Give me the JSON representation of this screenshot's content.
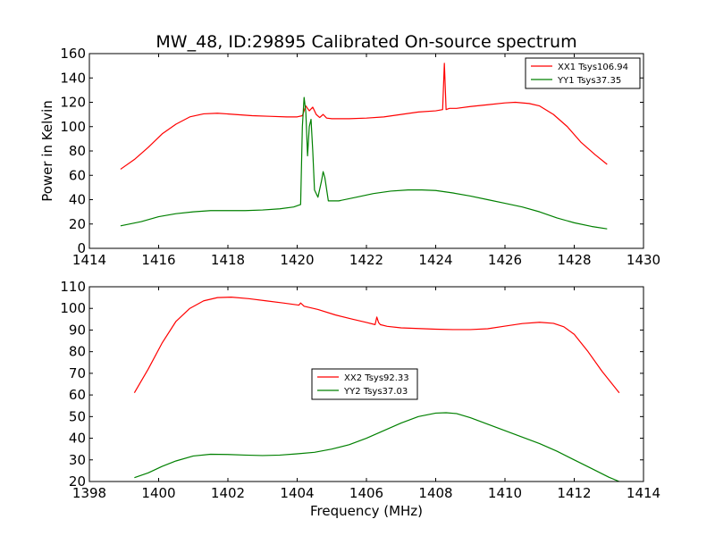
{
  "figure": {
    "title": "MW_48, ID:29895 Calibrated On-source spectrum",
    "ylabel": "Power in Kelvin",
    "xlabel": "Frequency (MHz)"
  },
  "chart_data": [
    {
      "type": "line",
      "title": "MW_48, ID:29895 Calibrated On-source spectrum",
      "xlabel": "",
      "ylabel": "Power in Kelvin",
      "xlim": [
        1414,
        1430
      ],
      "ylim": [
        0,
        160
      ],
      "xticks": [
        1414,
        1416,
        1418,
        1420,
        1422,
        1424,
        1426,
        1428,
        1430
      ],
      "yticks": [
        0,
        20,
        40,
        60,
        80,
        100,
        120,
        140,
        160
      ],
      "grid": false,
      "legend_position": "top-right",
      "series": [
        {
          "name": "XX1 Tsys106.94",
          "color": "#ff0000",
          "x": [
            1414.9,
            1415.3,
            1415.7,
            1416.1,
            1416.5,
            1416.9,
            1417.3,
            1417.7,
            1418.2,
            1418.7,
            1419.2,
            1419.7,
            1420.0,
            1420.15,
            1420.25,
            1420.35,
            1420.45,
            1420.55,
            1420.65,
            1420.75,
            1420.85,
            1421.0,
            1421.5,
            1422.0,
            1422.5,
            1423.0,
            1423.5,
            1424.0,
            1424.2,
            1424.25,
            1424.3,
            1424.35,
            1424.4,
            1424.6,
            1425.0,
            1425.5,
            1426.0,
            1426.3,
            1426.7,
            1427.0,
            1427.4,
            1427.8,
            1428.2,
            1428.6,
            1428.95
          ],
          "y": [
            65,
            73,
            83,
            94,
            102,
            108,
            110.5,
            111,
            110,
            109,
            108.5,
            108,
            108,
            109,
            117,
            113,
            116,
            110,
            107.5,
            110,
            107,
            106.5,
            106.5,
            107,
            108,
            110,
            112,
            113,
            114,
            152,
            114,
            114.5,
            115,
            115,
            116.5,
            118,
            119.5,
            120,
            119,
            117,
            110,
            100,
            87,
            77,
            69
          ]
        },
        {
          "name": "YY1 Tsys37.35",
          "color": "#008000",
          "x": [
            1414.9,
            1415.5,
            1416.0,
            1416.5,
            1417.0,
            1417.5,
            1418.0,
            1418.5,
            1419.0,
            1419.5,
            1419.9,
            1420.1,
            1420.15,
            1420.2,
            1420.25,
            1420.3,
            1420.35,
            1420.4,
            1420.45,
            1420.5,
            1420.6,
            1420.7,
            1420.75,
            1420.8,
            1420.9,
            1421.2,
            1421.7,
            1422.2,
            1422.7,
            1423.2,
            1423.6,
            1424.0,
            1424.5,
            1425.0,
            1425.5,
            1426.0,
            1426.5,
            1427.0,
            1427.5,
            1428.0,
            1428.5,
            1428.95
          ],
          "y": [
            18.5,
            22,
            26,
            28.5,
            30,
            31,
            31,
            31,
            31.5,
            32.5,
            34,
            36,
            100,
            124,
            112,
            76,
            100,
            106,
            80,
            48,
            42,
            55,
            63,
            58,
            39,
            39,
            42,
            45,
            47,
            48,
            48,
            47.5,
            45.5,
            43,
            40,
            37,
            34,
            30,
            25,
            21,
            18,
            16
          ]
        }
      ]
    },
    {
      "type": "line",
      "title": "",
      "xlabel": "Frequency (MHz)",
      "ylabel": "",
      "xlim": [
        1398,
        1414
      ],
      "ylim": [
        20,
        110
      ],
      "xticks": [
        1398,
        1400,
        1402,
        1404,
        1406,
        1408,
        1410,
        1412,
        1414
      ],
      "yticks": [
        20,
        30,
        40,
        50,
        60,
        70,
        80,
        90,
        100,
        110
      ],
      "grid": false,
      "legend_position": "center",
      "series": [
        {
          "name": "XX2 Tsys92.33",
          "color": "#ff0000",
          "x": [
            1399.3,
            1399.7,
            1400.1,
            1400.5,
            1400.9,
            1401.3,
            1401.7,
            1402.1,
            1402.6,
            1403.1,
            1403.6,
            1404.05,
            1404.1,
            1404.2,
            1404.6,
            1405.1,
            1405.6,
            1406.0,
            1406.25,
            1406.3,
            1406.35,
            1406.4,
            1406.6,
            1407.0,
            1407.5,
            1408.0,
            1408.5,
            1409.0,
            1409.5,
            1410.0,
            1410.5,
            1411.0,
            1411.4,
            1411.7,
            1412.0,
            1412.4,
            1412.8,
            1413.3
          ],
          "y": [
            61,
            72,
            84,
            94,
            100,
            103.5,
            105,
            105.2,
            104.5,
            103.5,
            102.5,
            101.5,
            102.5,
            101,
            99.5,
            97,
            95,
            93.5,
            92.5,
            96,
            93.5,
            92.5,
            91.7,
            91,
            90.7,
            90.4,
            90.2,
            90.2,
            90.6,
            91.8,
            93,
            93.6,
            93.1,
            91.5,
            88,
            80,
            71,
            61
          ]
        },
        {
          "name": "YY2 Tsys37.03",
          "color": "#008000",
          "x": [
            1399.3,
            1399.7,
            1400.1,
            1400.5,
            1401.0,
            1401.5,
            1402.0,
            1402.5,
            1403.0,
            1403.5,
            1404.0,
            1404.5,
            1405.0,
            1405.5,
            1406.0,
            1406.5,
            1407.0,
            1407.5,
            1408.0,
            1408.3,
            1408.6,
            1409.0,
            1409.5,
            1410.0,
            1410.5,
            1411.0,
            1411.5,
            1412.0,
            1412.5,
            1413.0,
            1413.3
          ],
          "y": [
            21.8,
            24,
            27,
            29.5,
            31.8,
            32.6,
            32.5,
            32.2,
            32,
            32.2,
            32.8,
            33.5,
            35,
            37,
            40,
            43.5,
            47,
            50,
            51.6,
            51.8,
            51.4,
            49.5,
            46.5,
            43.5,
            40.5,
            37.5,
            34,
            30,
            26,
            22,
            20
          ]
        }
      ]
    }
  ]
}
